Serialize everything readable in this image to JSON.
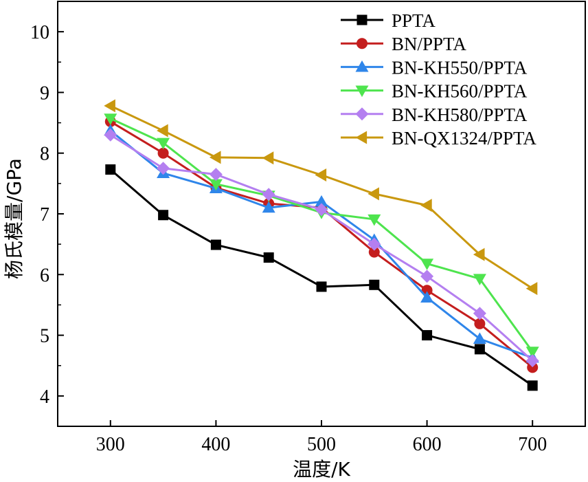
{
  "chart_data": {
    "type": "line",
    "title": "",
    "xlabel": "温度/K",
    "ylabel": "杨氏模量/GPa",
    "xlim": [
      250,
      750
    ],
    "ylim": [
      3.5,
      10.5
    ],
    "xticks": [
      300,
      400,
      500,
      600,
      700
    ],
    "yticks": [
      4,
      5,
      6,
      7,
      8,
      9,
      10
    ],
    "grid": false,
    "legend_position": "top-right",
    "x": [
      300,
      350,
      400,
      450,
      500,
      550,
      600,
      650,
      700
    ],
    "series": [
      {
        "name": "PPTA",
        "color": "#000000",
        "marker": "square",
        "values": [
          7.73,
          6.98,
          6.49,
          6.28,
          5.8,
          5.83,
          5.0,
          4.77,
          4.17
        ]
      },
      {
        "name": "BN/PPTA",
        "color": "#c41e1e",
        "marker": "circle",
        "values": [
          8.52,
          8.0,
          7.43,
          7.17,
          7.1,
          6.37,
          5.74,
          5.19,
          4.47
        ]
      },
      {
        "name": "BN-KH550/PPTA",
        "color": "#2f86ea",
        "marker": "triangle-up",
        "values": [
          8.37,
          7.67,
          7.42,
          7.1,
          7.2,
          6.57,
          5.62,
          4.94,
          4.63
        ]
      },
      {
        "name": "BN-KH560/PPTA",
        "color": "#4ee44e",
        "marker": "triangle-down",
        "values": [
          8.57,
          8.17,
          7.49,
          7.3,
          7.02,
          6.91,
          6.18,
          5.93,
          4.73
        ]
      },
      {
        "name": "BN-KH580/PPTA",
        "color": "#b47ff0",
        "marker": "diamond",
        "values": [
          8.3,
          7.75,
          7.65,
          7.32,
          7.07,
          6.5,
          5.97,
          5.36,
          4.58
        ]
      },
      {
        "name": "BN-QX1324/PPTA",
        "color": "#c9980f",
        "marker": "triangle-left",
        "values": [
          8.78,
          8.37,
          7.93,
          7.92,
          7.64,
          7.33,
          7.14,
          6.33,
          5.77
        ]
      }
    ]
  }
}
